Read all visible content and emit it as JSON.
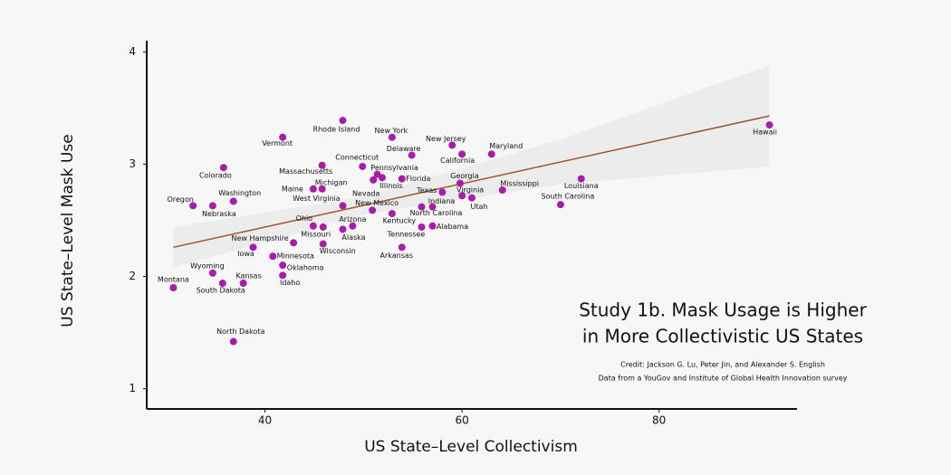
{
  "chart_data": {
    "type": "scatter",
    "x_label": "US State–Level Collectivism",
    "y_label": "US State–Level Mask Use",
    "xlim": [
      28,
      94
    ],
    "ylim": [
      0.82,
      4.1
    ],
    "xticks": [
      40,
      60,
      80
    ],
    "yticks": [
      1,
      2,
      3,
      4
    ],
    "color": "#a81ca8",
    "fit_color": "#a0522d",
    "band_color": "#ececec",
    "point_labels": [
      "Montana",
      "Wyoming",
      "South Dakota",
      "Kansas",
      "North Dakota",
      "Oregon",
      "Nebraska",
      "Washington",
      "Colorado",
      "Vermont",
      "Rhode Island",
      "New York",
      "New Jersey",
      "Delaware",
      "California",
      "Maryland",
      "Hawaii",
      "Connecticut",
      "Massachusetts",
      "Pennsylvania",
      "Florida",
      "Illinois",
      "Michigan",
      "Maine",
      "West Virginia",
      "Nevada",
      "Georgia",
      "Texas",
      "Virginia",
      "Utah",
      "Mississippi",
      "Louisiana",
      "South Carolina",
      "Indiana",
      "North Carolina",
      "New Mexico",
      "Kentucky",
      "Alabama",
      "Tennessee",
      "Arkansas",
      "Ohio",
      "Missouri",
      "Arizona",
      "Alaska",
      "Wisconsin",
      "New Hampshire",
      "Iowa",
      "Minnesota",
      "Oklahoma",
      "Idaho"
    ],
    "x": [
      30.7,
      34.7,
      35.7,
      37.8,
      36.8,
      32.7,
      34.7,
      36.8,
      35.8,
      41.8,
      47.9,
      52.9,
      59.0,
      54.9,
      60.0,
      63.0,
      91.2,
      49.9,
      45.8,
      51.4,
      53.9,
      51.9,
      45.8,
      44.9,
      47.9,
      51.0,
      59.8,
      58.0,
      60.0,
      61.0,
      64.1,
      72.1,
      70.0,
      55.9,
      57.0,
      50.9,
      52.9,
      57.0,
      55.9,
      53.9,
      44.9,
      45.9,
      48.9,
      47.9,
      45.9,
      42.9,
      38.8,
      40.8,
      41.8,
      41.8
    ],
    "values": [
      1.9,
      2.03,
      1.94,
      1.94,
      1.42,
      2.63,
      2.63,
      2.67,
      2.97,
      3.24,
      3.39,
      3.24,
      3.17,
      3.08,
      3.09,
      3.09,
      3.35,
      2.98,
      2.99,
      2.91,
      2.87,
      2.88,
      2.78,
      2.78,
      2.63,
      2.86,
      2.83,
      2.75,
      2.72,
      2.7,
      2.77,
      2.87,
      2.64,
      2.62,
      2.62,
      2.59,
      2.56,
      2.45,
      2.44,
      2.26,
      2.45,
      2.44,
      2.45,
      2.42,
      2.29,
      2.3,
      2.26,
      2.18,
      2.1,
      2.01
    ],
    "fit": {
      "x": [
        30.7,
        91.2
      ],
      "y": [
        2.26,
        3.43
      ]
    },
    "band": {
      "x": [
        30.7,
        50,
        70,
        91.2
      ],
      "lower": [
        2.08,
        2.55,
        2.82,
        2.98
      ],
      "upper": [
        2.44,
        2.71,
        3.22,
        3.88
      ]
    },
    "annotation": {
      "title_lines": [
        "Study 1b. Mask Usage is Higher",
        "in More Collectivistic US States"
      ],
      "credits": [
        "Credit: Jackson G. Lu, Peter Jin, and Alexander S. English",
        "Data from a YouGov and Institute of Global Health Innovation survey"
      ]
    }
  }
}
